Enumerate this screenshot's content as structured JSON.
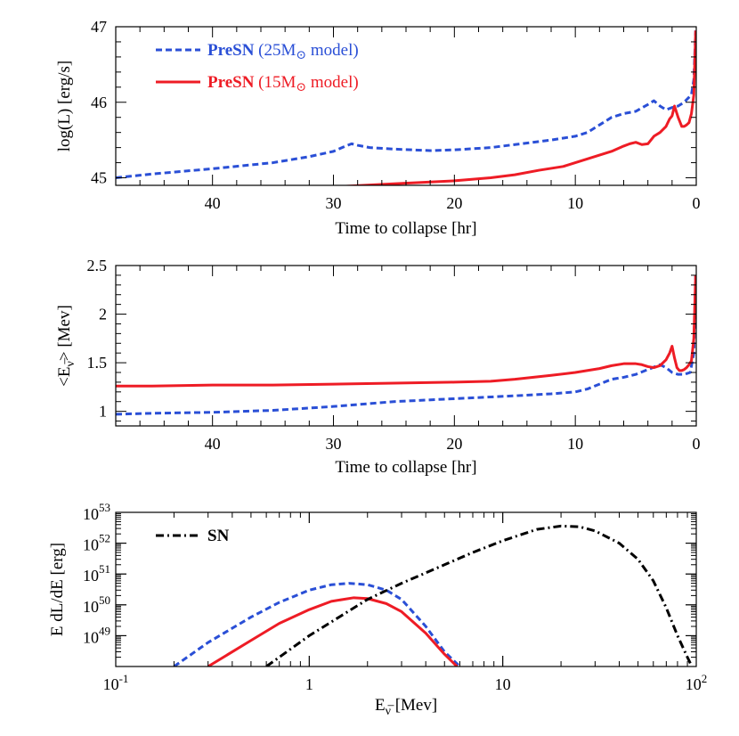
{
  "colors": {
    "blue": "#2a4fd6",
    "red": "#ee1c25",
    "black": "#000000"
  },
  "chart_data": [
    {
      "type": "line",
      "xlabel": "Time to collapse [hr]",
      "ylabel": "log(L) [erg/s]",
      "xlim": [
        48,
        0
      ],
      "ylim": [
        44.9,
        47
      ],
      "xticks": [
        "40",
        "30",
        "20",
        "10",
        "0"
      ],
      "yticks": [
        "45",
        "46",
        "47"
      ],
      "legend": [
        {
          "bold": "PreSN",
          "rest_a": " (25M",
          "sun": "⊙",
          "rest_b": " model)",
          "color": "#2a4fd6",
          "style": "dashed"
        },
        {
          "bold": "PreSN",
          "rest_a": " (15M",
          "sun": "⊙",
          "rest_b": " model)",
          "color": "#ee1c25",
          "style": "solid"
        }
      ],
      "series": [
        {
          "color": "#2a4fd6",
          "style": "dashed",
          "x": [
            48,
            45,
            40,
            35,
            32,
            30,
            29,
            28.5,
            28,
            27,
            25,
            22,
            20,
            17,
            15,
            12,
            10,
            9,
            8,
            7,
            6,
            5,
            4,
            3.5,
            3,
            2.5,
            2,
            1.5,
            1,
            0.7,
            0.4,
            0.2,
            0.05
          ],
          "y": [
            45.0,
            45.05,
            45.12,
            45.2,
            45.28,
            45.35,
            45.42,
            45.45,
            45.43,
            45.4,
            45.38,
            45.36,
            45.37,
            45.4,
            45.44,
            45.5,
            45.55,
            45.6,
            45.7,
            45.8,
            45.85,
            45.88,
            45.97,
            46.02,
            45.95,
            45.9,
            45.93,
            45.95,
            46.0,
            46.05,
            46.1,
            46.3,
            46.95
          ]
        },
        {
          "color": "#ee1c25",
          "style": "solid",
          "x": [
            48,
            45,
            40,
            35,
            30,
            25,
            20,
            17,
            15,
            13,
            11,
            10,
            9,
            8,
            7,
            6,
            5.5,
            5,
            4.5,
            4,
            3.5,
            3,
            2.5,
            2.2,
            2,
            1.8,
            1.5,
            1.2,
            1,
            0.8,
            0.6,
            0.4,
            0.2,
            0.05
          ],
          "y": [
            44.82,
            44.82,
            44.84,
            44.86,
            44.88,
            44.92,
            44.96,
            45.0,
            45.04,
            45.1,
            45.15,
            45.2,
            45.25,
            45.3,
            45.35,
            45.42,
            45.45,
            45.47,
            45.44,
            45.45,
            45.55,
            45.6,
            45.68,
            45.78,
            45.82,
            45.95,
            45.8,
            45.68,
            45.68,
            45.7,
            45.73,
            45.85,
            46.1,
            46.95
          ]
        }
      ]
    },
    {
      "type": "line",
      "xlabel": "Time to collapse [hr]",
      "ylabel": "<E",
      "ylabel_sub": "ν̅",
      "ylabel_end": "> [Mev]",
      "xlim": [
        48,
        0
      ],
      "ylim": [
        0.85,
        2.5
      ],
      "xticks": [
        "40",
        "30",
        "20",
        "10",
        "0"
      ],
      "yticks": [
        "1",
        "1.5",
        "2",
        "2.5"
      ],
      "series": [
        {
          "color": "#2a4fd6",
          "style": "dashed",
          "x": [
            48,
            45,
            40,
            35,
            30,
            25,
            20,
            15,
            12,
            10,
            9,
            8,
            7,
            6,
            5,
            4,
            3,
            2.5,
            2,
            1.5,
            1,
            0.5,
            0.2,
            0.05
          ],
          "y": [
            0.97,
            0.98,
            0.99,
            1.01,
            1.05,
            1.1,
            1.13,
            1.16,
            1.18,
            1.2,
            1.23,
            1.28,
            1.33,
            1.35,
            1.38,
            1.43,
            1.48,
            1.45,
            1.4,
            1.38,
            1.38,
            1.4,
            1.6,
            2.4
          ]
        },
        {
          "color": "#ee1c25",
          "style": "solid",
          "x": [
            48,
            45,
            40,
            35,
            30,
            25,
            20,
            17,
            15,
            12,
            10,
            8,
            7,
            6,
            5,
            4.5,
            4,
            3.5,
            3,
            2.5,
            2.2,
            2,
            1.8,
            1.6,
            1.4,
            1.2,
            1,
            0.8,
            0.6,
            0.4,
            0.2,
            0.05
          ],
          "y": [
            1.26,
            1.26,
            1.27,
            1.27,
            1.28,
            1.29,
            1.3,
            1.31,
            1.33,
            1.37,
            1.4,
            1.44,
            1.47,
            1.49,
            1.49,
            1.48,
            1.46,
            1.45,
            1.47,
            1.53,
            1.6,
            1.67,
            1.55,
            1.45,
            1.42,
            1.42,
            1.43,
            1.45,
            1.48,
            1.52,
            1.75,
            2.4
          ]
        }
      ]
    },
    {
      "type": "line",
      "xlabel": "E",
      "xlabel_sub": "ν̅",
      "xlabel_end": "  [Mev]",
      "ylabel": "E dL/dE [erg]",
      "xscale": "log",
      "yscale": "log",
      "xlim": [
        0.1,
        100
      ],
      "ylim": [
        1e+48,
        1e+53
      ],
      "xticks": [
        {
          "v": 0.1,
          "base": "10",
          "exp": "-1"
        },
        {
          "v": 1,
          "base": "1",
          "exp": ""
        },
        {
          "v": 10,
          "base": "10",
          "exp": ""
        },
        {
          "v": 100,
          "base": "10",
          "exp": "2"
        }
      ],
      "yticks": [
        {
          "v": 1e+49,
          "base": "10",
          "exp": "49"
        },
        {
          "v": 1e+50,
          "base": "10",
          "exp": "50"
        },
        {
          "v": 1e+51,
          "base": "10",
          "exp": "51"
        },
        {
          "v": 1e+52,
          "base": "10",
          "exp": "52"
        },
        {
          "v": 1e+53,
          "base": "10",
          "exp": "53"
        }
      ],
      "legend": [
        {
          "bold": "SN",
          "color": "#000000",
          "style": "dashdot"
        }
      ],
      "series": [
        {
          "color": "#2a4fd6",
          "style": "dashed",
          "x": [
            0.2,
            0.3,
            0.5,
            0.7,
            1.0,
            1.3,
            1.6,
            2.0,
            2.5,
            3.0,
            4.0,
            5.0,
            6.0
          ],
          "y": [
            1e+48,
            6e+48,
            4e+49,
            1.2e+50,
            3e+50,
            4.5e+50,
            5e+50,
            4.5e+50,
            3e+50,
            1.5e+50,
            2e+49,
            3e+48,
            1e+48
          ]
        },
        {
          "color": "#ee1c25",
          "style": "solid",
          "x": [
            0.3,
            0.5,
            0.7,
            1.0,
            1.3,
            1.7,
            2.0,
            2.5,
            3.0,
            4.0,
            5.0,
            5.8
          ],
          "y": [
            1e+48,
            7e+48,
            2.5e+49,
            7e+49,
            1.3e+50,
            1.7e+50,
            1.6e+50,
            1.1e+50,
            6e+49,
            1.2e+49,
            2.5e+48,
            1e+48
          ]
        },
        {
          "color": "#000000",
          "style": "dashdot",
          "x": [
            0.6,
            1,
            2,
            3,
            5,
            7,
            10,
            15,
            20,
            25,
            30,
            40,
            50,
            60,
            70,
            80,
            90,
            100
          ],
          "y": [
            1e+48,
            1e+49,
            1.5e+50,
            5e+50,
            2e+51,
            5e+51,
            1.2e+52,
            2.8e+52,
            3.6e+52,
            3.4e+52,
            2.5e+52,
            1e+52,
            3e+51,
            6e+50,
            8e+49,
            1e+49,
            2e+48,
            5e+47
          ]
        }
      ]
    }
  ]
}
